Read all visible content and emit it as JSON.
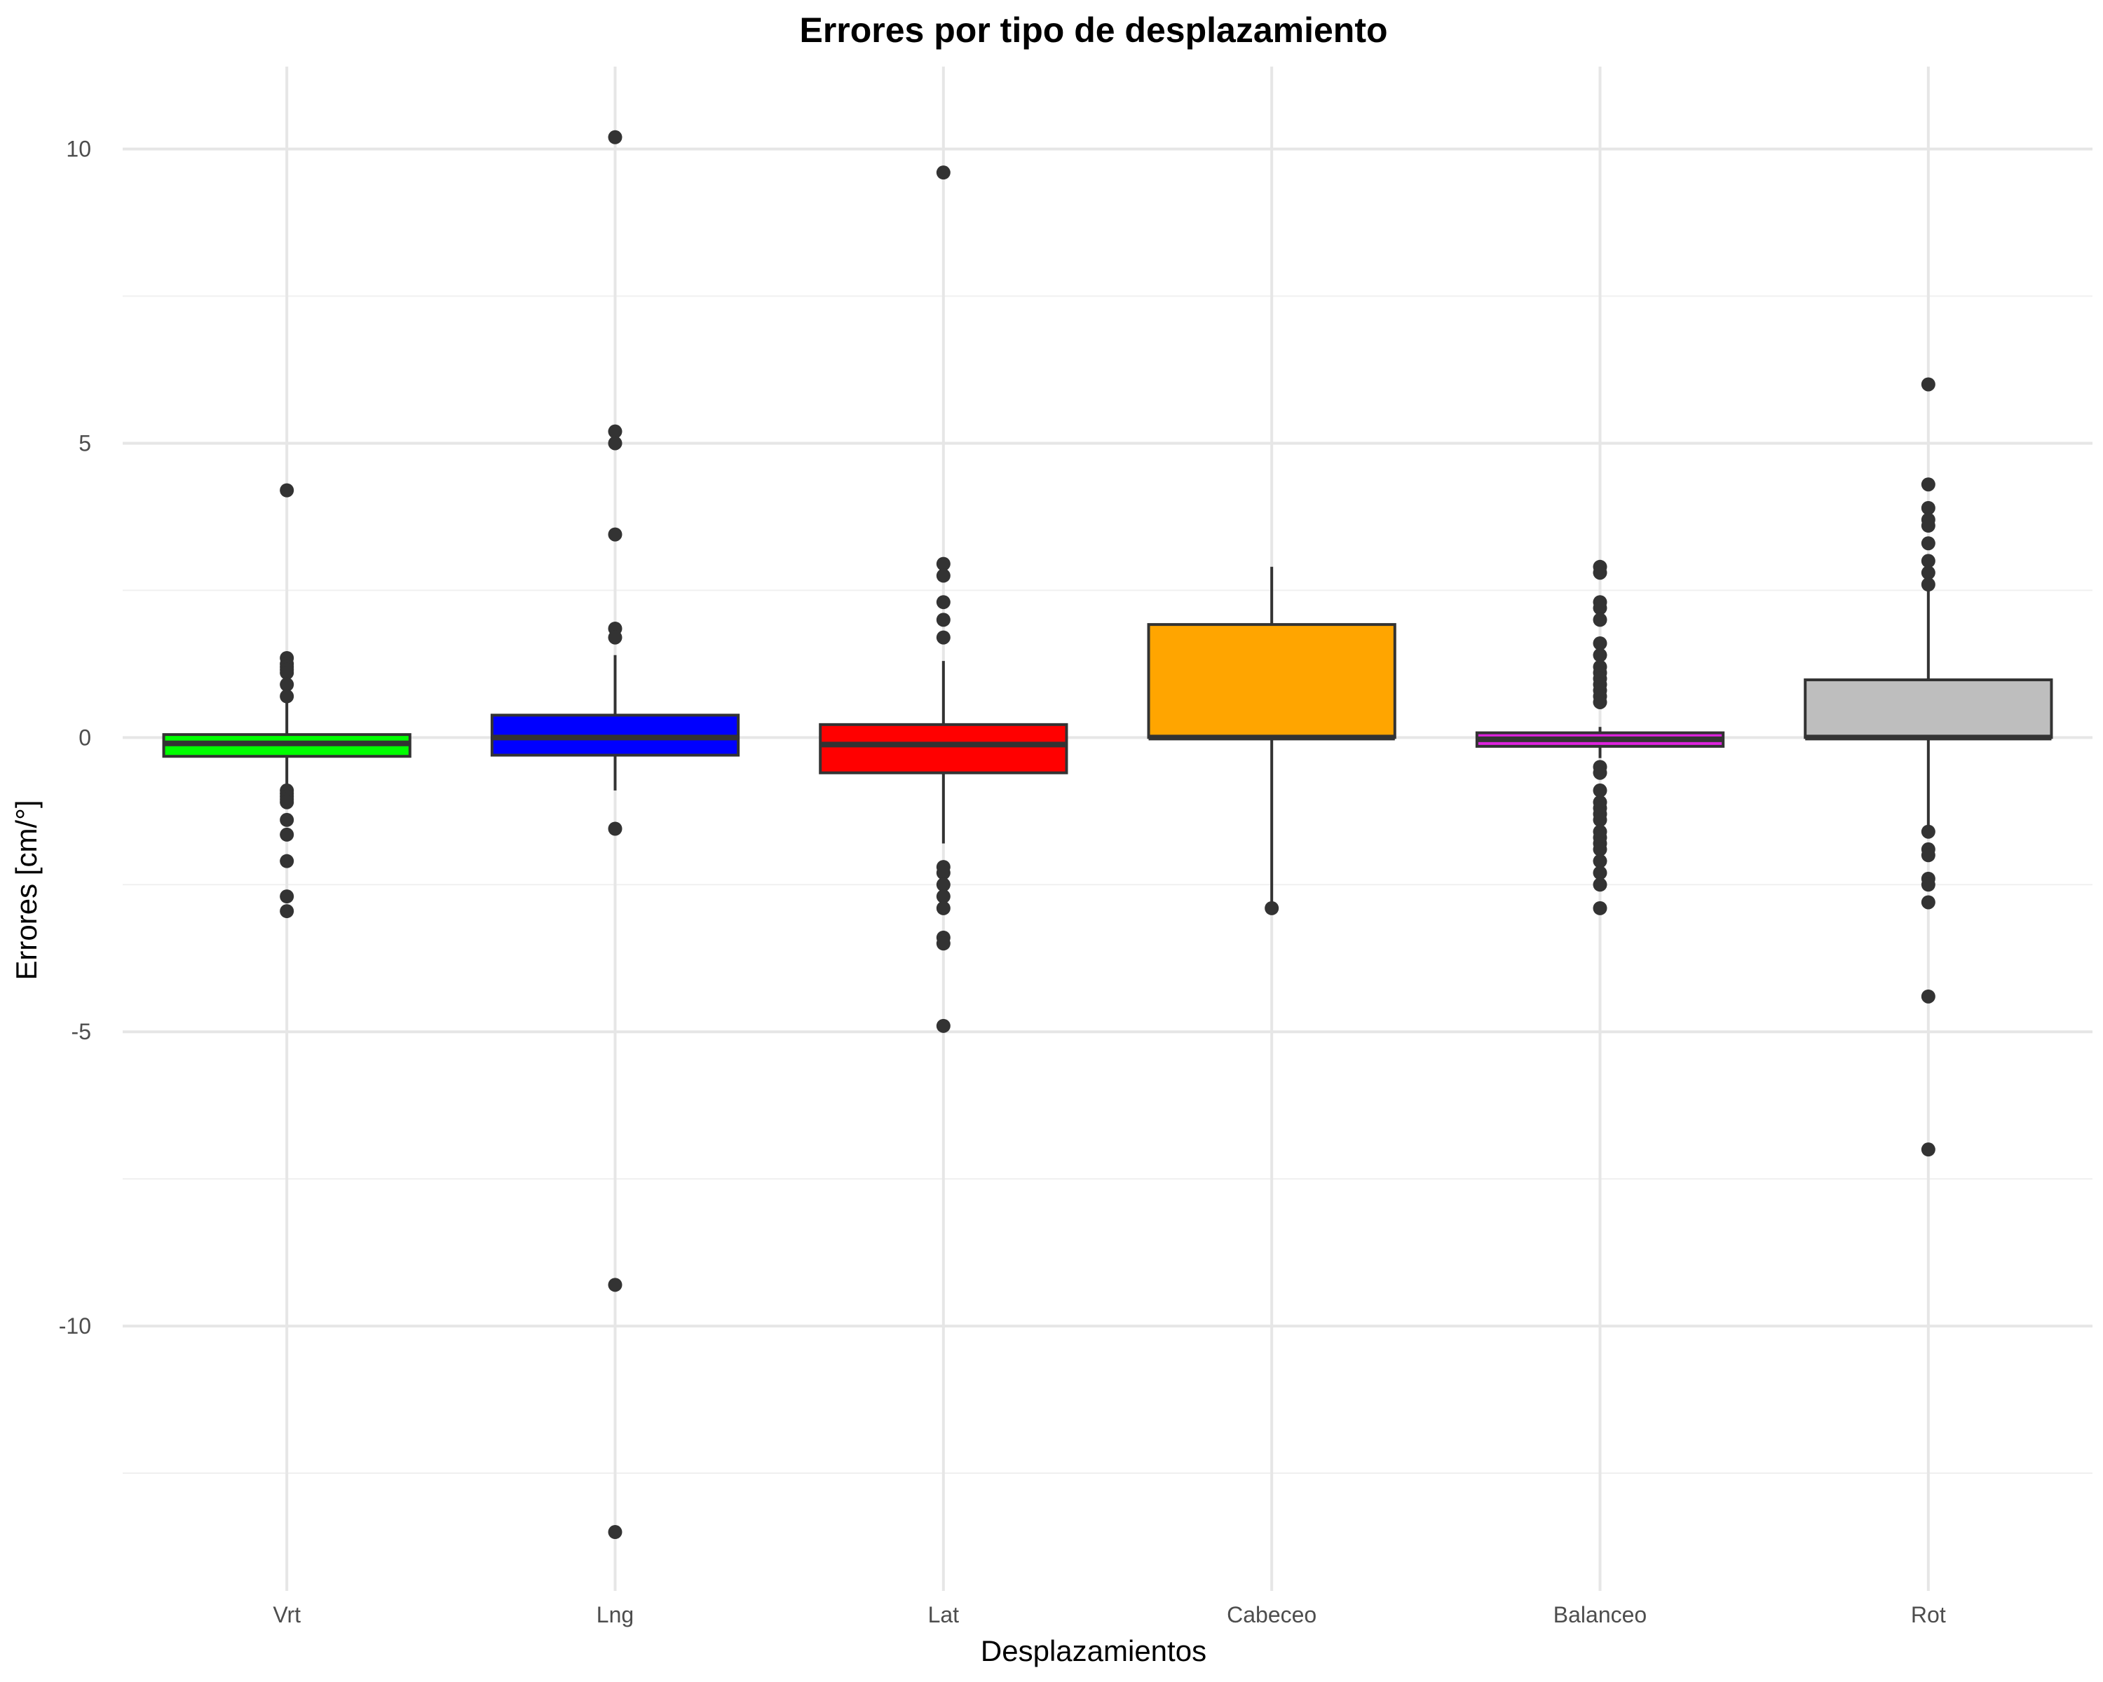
{
  "chart_data": {
    "type": "box",
    "title": "Errores por tipo de desplazamiento",
    "xlabel": "Desplazamientos",
    "ylabel": "Errores [cm/°]",
    "categories": [
      "Vrt",
      "Lng",
      "Lat",
      "Cabeceo",
      "Balanceo",
      "Rot"
    ],
    "ylim": [
      -14.5,
      11.4
    ],
    "yticks": [
      -10,
      -5,
      0,
      5,
      10
    ],
    "grid": true,
    "legend": "none",
    "boxes": [
      {
        "category": "Vrt",
        "color": "#00ff00",
        "q1": -0.32,
        "median": -0.1,
        "q3": 0.05,
        "whisker_low": -0.8,
        "whisker_high": 0.6,
        "outliers": [
          4.2,
          1.35,
          1.25,
          1.2,
          1.15,
          1.1,
          0.9,
          0.7,
          -0.9,
          -0.95,
          -1.0,
          -1.05,
          -1.1,
          -1.4,
          -1.65,
          -2.1,
          -2.7,
          -2.95
        ]
      },
      {
        "category": "Lng",
        "color": "#0000ff",
        "q1": -0.3,
        "median": 0.0,
        "q3": 0.38,
        "whisker_low": -0.9,
        "whisker_high": 1.4,
        "outliers": [
          10.2,
          5.2,
          5.0,
          3.45,
          1.85,
          1.7,
          -1.55,
          -9.3,
          -13.5
        ]
      },
      {
        "category": "Lat",
        "color": "#ff0000",
        "q1": -0.6,
        "median": -0.12,
        "q3": 0.22,
        "whisker_low": -1.8,
        "whisker_high": 1.3,
        "outliers": [
          9.6,
          2.95,
          2.75,
          2.3,
          2.0,
          1.7,
          -2.2,
          -2.3,
          -2.5,
          -2.7,
          -2.9,
          -3.4,
          -3.5,
          -4.9
        ]
      },
      {
        "category": "Cabeceo",
        "color": "#ffa500",
        "q1": 0.0,
        "median": 0.0,
        "q3": 1.92,
        "whisker_low": -2.9,
        "whisker_high": 2.9,
        "outliers": [
          -2.9
        ]
      },
      {
        "category": "Balanceo",
        "color": "#dd22dd",
        "q1": -0.15,
        "median": -0.03,
        "q3": 0.08,
        "whisker_low": -0.35,
        "whisker_high": 0.18,
        "outliers": [
          2.9,
          2.8,
          2.3,
          2.2,
          2.0,
          1.6,
          1.4,
          1.2,
          1.1,
          1.0,
          0.9,
          0.8,
          0.7,
          0.6,
          -0.5,
          -0.6,
          -0.9,
          -1.1,
          -1.2,
          -1.3,
          -1.4,
          -1.6,
          -1.7,
          -1.8,
          -1.9,
          -2.1,
          -2.3,
          -2.5,
          -2.9
        ]
      },
      {
        "category": "Rot",
        "color": "#bebebe",
        "q1": 0.0,
        "median": 0.0,
        "q3": 0.98,
        "whisker_low": -1.6,
        "whisker_high": 2.5,
        "outliers": [
          6.0,
          4.3,
          3.9,
          3.7,
          3.6,
          3.3,
          3.0,
          2.8,
          2.6,
          -1.6,
          -1.9,
          -2.0,
          -2.4,
          -2.5,
          -2.8,
          -4.4,
          -7.0
        ]
      }
    ]
  }
}
